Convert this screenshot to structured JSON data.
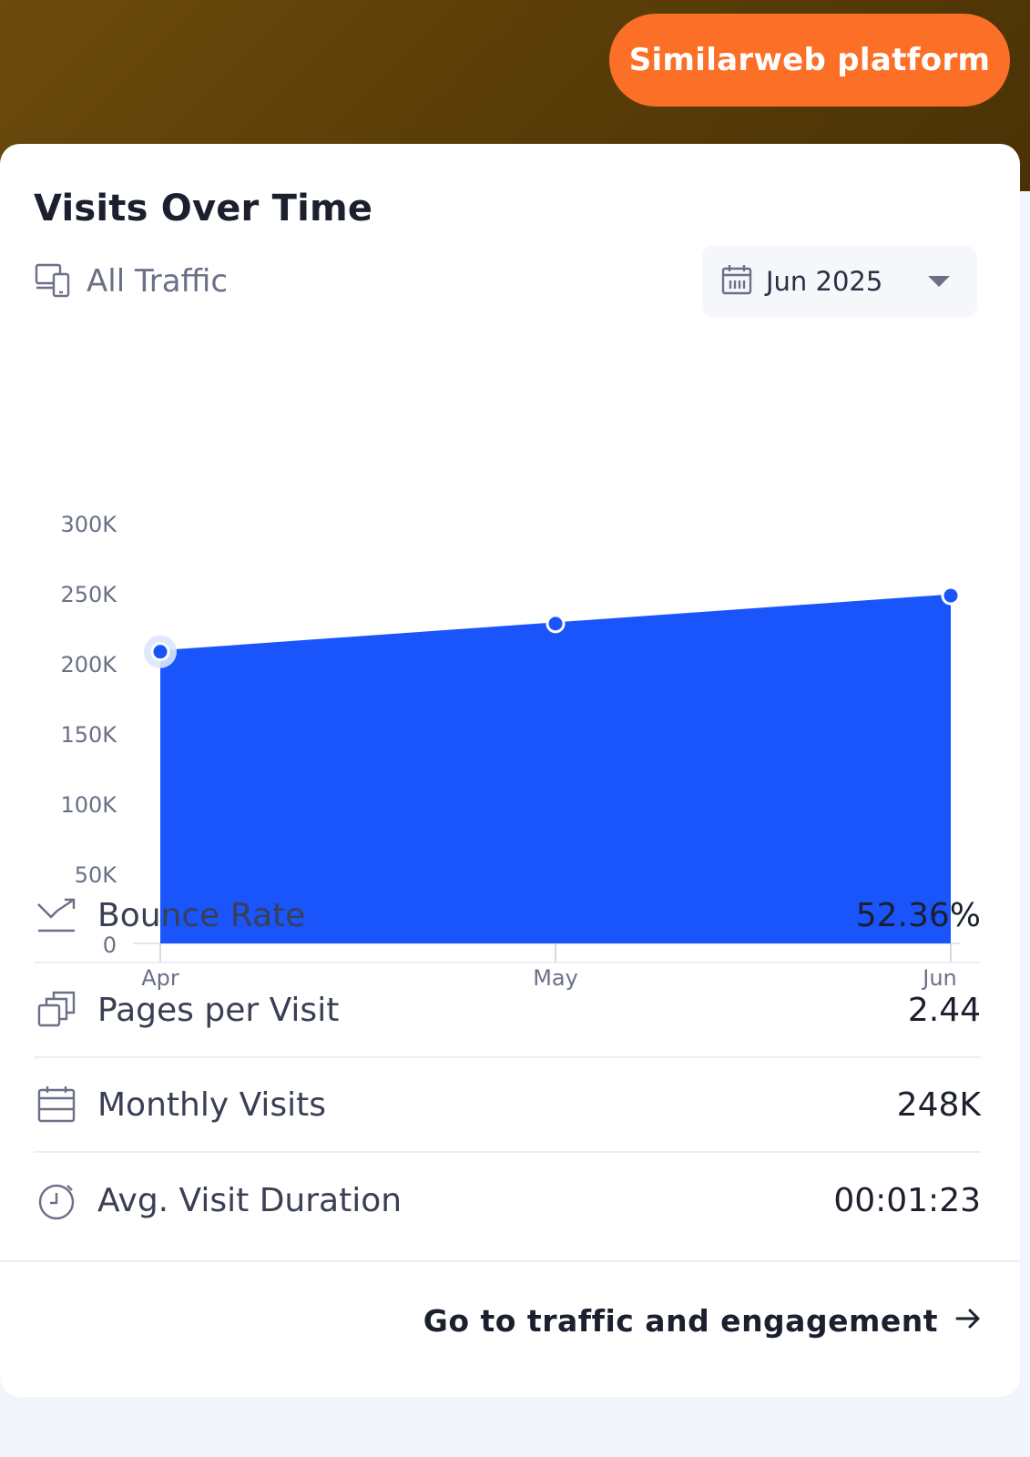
{
  "header": {
    "platform_button": "Similarweb platform"
  },
  "card": {
    "title": "Visits Over Time",
    "traffic_filter": "All Traffic",
    "date_picker": "Jun 2025",
    "footer_link": "Go to traffic and engagement"
  },
  "colors": {
    "brand_orange": "#fb6f27",
    "chart_blue": "#1a55fb",
    "header_brown": "#5c3f08"
  },
  "icons": {
    "traffic": "devices-icon",
    "date": "calendar-icon",
    "dropdown": "caret-down-icon",
    "bounce": "trend-down-icon",
    "pages": "pages-stack-icon",
    "monthly": "calendar-icon",
    "duration": "stopwatch-icon",
    "arrow": "arrow-right-icon"
  },
  "metrics": [
    {
      "label": "Bounce Rate",
      "value": "52.36%"
    },
    {
      "label": "Pages per Visit",
      "value": "2.44"
    },
    {
      "label": "Monthly Visits",
      "value": "248K"
    },
    {
      "label": "Avg. Visit Duration",
      "value": "00:01:23"
    }
  ],
  "chart_data": {
    "type": "area",
    "categories": [
      "Apr",
      "May",
      "Jun"
    ],
    "values": [
      208000,
      228000,
      248000
    ],
    "ylim": [
      0,
      300000
    ],
    "yticks": [
      0,
      50000,
      100000,
      150000,
      200000,
      250000,
      300000
    ],
    "ytick_labels": [
      "0",
      "50K",
      "100K",
      "150K",
      "200K",
      "250K",
      "300K"
    ],
    "grid": false
  }
}
